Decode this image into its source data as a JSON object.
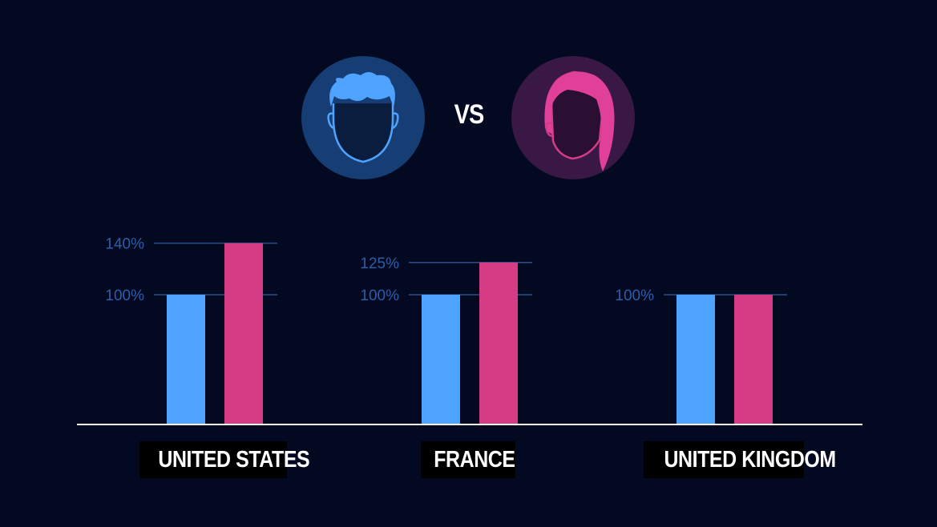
{
  "vs_label": "VS",
  "icons": {
    "male": "male-avatar-icon",
    "female": "female-avatar-icon"
  },
  "colors": {
    "background": "#020920",
    "male": "#4ea3ff",
    "female": "#d63b85",
    "gridline": "#2a4f8a",
    "tick_text": "#2e5ea8",
    "baseline": "#ffffff"
  },
  "chart_data": [
    {
      "type": "bar",
      "xlabel": "UNITED STATES",
      "series": [
        {
          "values": [
            100
          ]
        },
        {
          "values": [
            140
          ]
        }
      ],
      "tick_labels": [
        "100%",
        "140%"
      ],
      "ticks": [
        100,
        140
      ]
    },
    {
      "type": "bar",
      "xlabel": "FRANCE",
      "series": [
        {
          "values": [
            100
          ]
        },
        {
          "values": [
            125
          ]
        }
      ],
      "tick_labels": [
        "100%",
        "125%"
      ],
      "ticks": [
        100,
        125
      ]
    },
    {
      "type": "bar",
      "xlabel": "UNITED KINGDOM",
      "series": [
        {
          "values": [
            100
          ]
        },
        {
          "values": [
            100
          ]
        }
      ],
      "tick_labels": [
        "100%"
      ],
      "ticks": [
        100
      ]
    }
  ]
}
